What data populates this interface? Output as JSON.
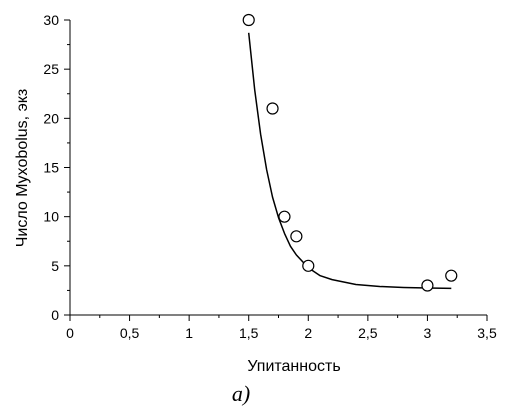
{
  "chart_data": {
    "type": "scatter",
    "xlabel": "Упитанность",
    "ylabel": "Число Myxobolus, экз",
    "caption": "а)",
    "xlim": [
      0,
      3.5
    ],
    "ylim": [
      0,
      30
    ],
    "x_ticks": [
      "0",
      "0,5",
      "1",
      "1,5",
      "2",
      "2,5",
      "3",
      "3,5"
    ],
    "x_tick_values": [
      0,
      0.5,
      1,
      1.5,
      2,
      2.5,
      3,
      3.5
    ],
    "y_ticks": [
      "0",
      "5",
      "10",
      "15",
      "20",
      "25",
      "30"
    ],
    "y_tick_values": [
      0,
      5,
      10,
      15,
      20,
      25,
      30
    ],
    "grid": false,
    "series": [
      {
        "type": "scatter",
        "marker": "open-circle",
        "points": [
          {
            "x": 1.5,
            "y": 30
          },
          {
            "x": 1.7,
            "y": 21
          },
          {
            "x": 1.8,
            "y": 10
          },
          {
            "x": 1.9,
            "y": 8
          },
          {
            "x": 2.0,
            "y": 5
          },
          {
            "x": 3.0,
            "y": 3
          },
          {
            "x": 3.2,
            "y": 4
          }
        ]
      },
      {
        "type": "line",
        "style": "smooth-fit",
        "points": [
          {
            "x": 1.5,
            "y": 28.7
          },
          {
            "x": 1.55,
            "y": 22.9
          },
          {
            "x": 1.6,
            "y": 18.4
          },
          {
            "x": 1.65,
            "y": 14.8
          },
          {
            "x": 1.7,
            "y": 12.0
          },
          {
            "x": 1.75,
            "y": 9.9
          },
          {
            "x": 1.8,
            "y": 8.3
          },
          {
            "x": 1.85,
            "y": 7.0
          },
          {
            "x": 1.9,
            "y": 6.1
          },
          {
            "x": 2.0,
            "y": 4.8
          },
          {
            "x": 2.1,
            "y": 4.0
          },
          {
            "x": 2.2,
            "y": 3.6
          },
          {
            "x": 2.4,
            "y": 3.1
          },
          {
            "x": 2.6,
            "y": 2.9
          },
          {
            "x": 2.8,
            "y": 2.8
          },
          {
            "x": 3.0,
            "y": 2.75
          },
          {
            "x": 3.2,
            "y": 2.7
          }
        ]
      }
    ]
  }
}
